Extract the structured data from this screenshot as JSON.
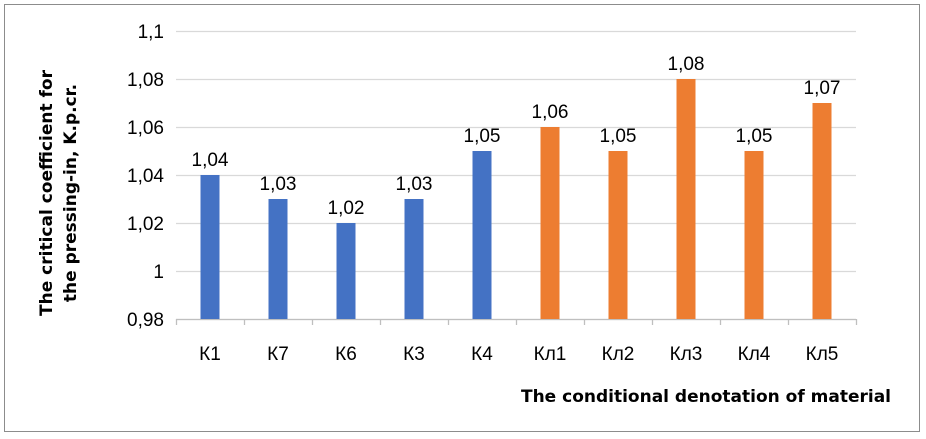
{
  "chart_data": {
    "type": "bar",
    "categories": [
      "К1",
      "К7",
      "К6",
      "К3",
      "К4",
      "Кл1",
      "Кл2",
      "Кл3",
      "Кл4",
      "Кл5"
    ],
    "values": [
      1.04,
      1.03,
      1.02,
      1.03,
      1.05,
      1.06,
      1.05,
      1.08,
      1.05,
      1.07
    ],
    "data_labels": [
      "1,04",
      "1,03",
      "1,02",
      "1,03",
      "1,05",
      "1,06",
      "1,05",
      "1,08",
      "1,05",
      "1,07"
    ],
    "bar_colors": [
      "#4472C4",
      "#4472C4",
      "#4472C4",
      "#4472C4",
      "#4472C4",
      "#ED7D31",
      "#ED7D31",
      "#ED7D31",
      "#ED7D31",
      "#ED7D31"
    ],
    "ylim": [
      0.98,
      1.1
    ],
    "yticks": [
      0.98,
      1.0,
      1.02,
      1.04,
      1.06,
      1.08,
      1.1
    ],
    "ytick_labels": [
      "0,98",
      "1",
      "1,02",
      "1,04",
      "1,06",
      "1,08",
      "1,1"
    ],
    "xlabel": "The conditional  denotation of material",
    "ylabel_lines": [
      "The critical  coefficient  for",
      "the pressing-in,  K.p.cr."
    ],
    "grid": true,
    "legend": "none"
  }
}
